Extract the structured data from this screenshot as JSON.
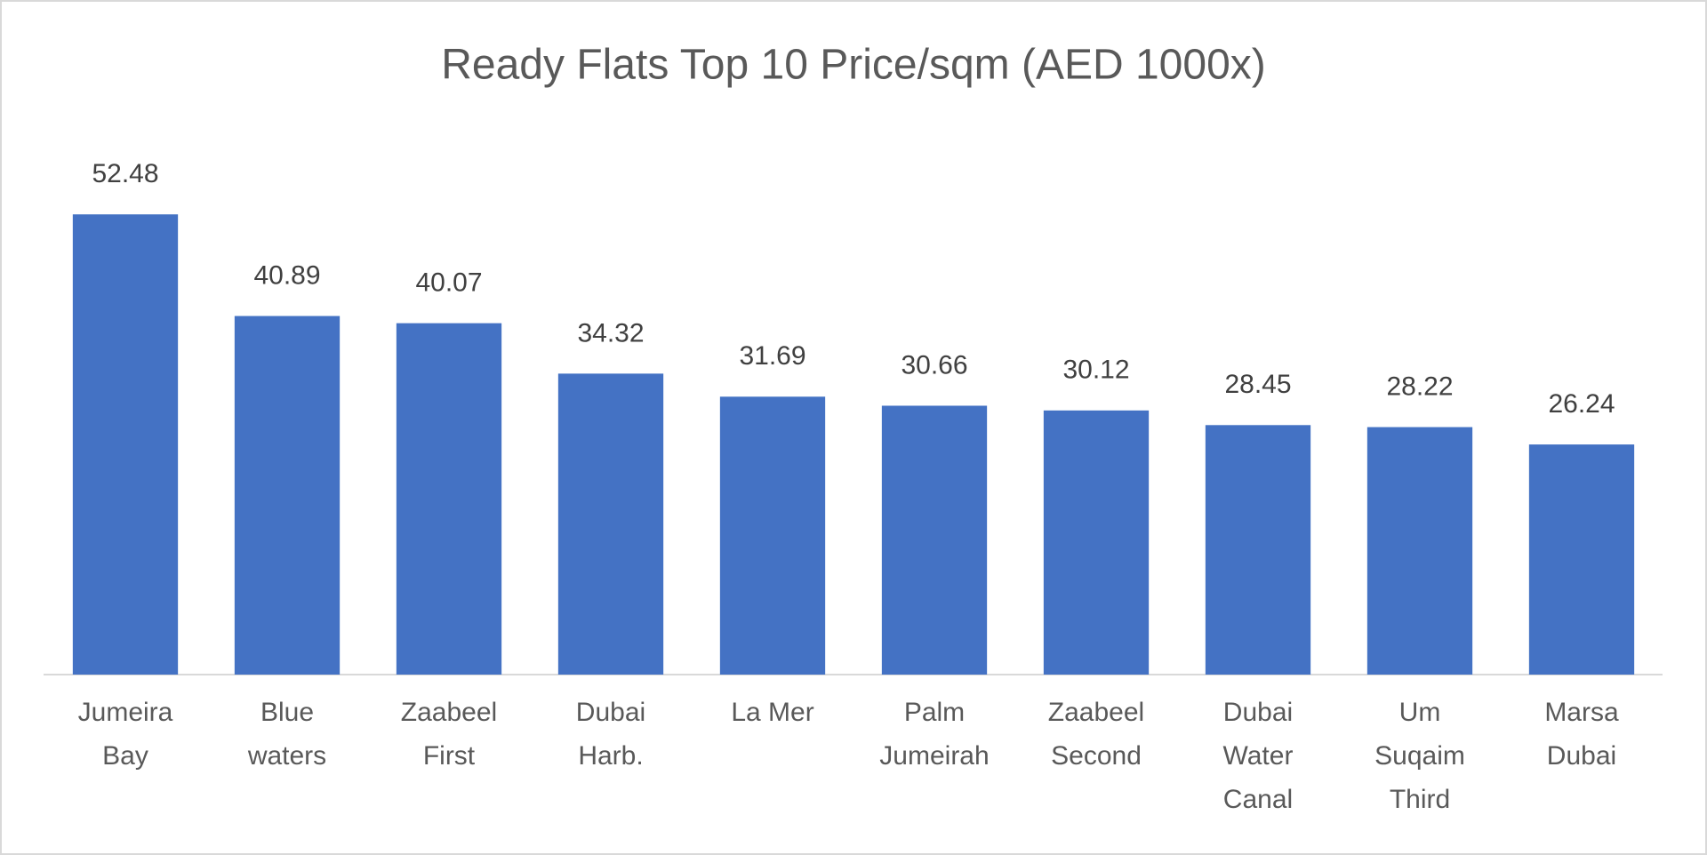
{
  "chart_data": {
    "type": "bar",
    "title": "Ready Flats Top 10 Price/sqm (AED 1000x)",
    "categories": [
      "Jumeira Bay",
      "Blue waters",
      "Zaabeel First",
      "Dubai Harb.",
      "La Mer",
      "Palm Jumeirah",
      "Zaabeel Second",
      "Dubai Water Canal",
      "Um Suqaim Third",
      "Marsa Dubai"
    ],
    "values": [
      52.48,
      40.89,
      40.07,
      34.32,
      31.69,
      30.66,
      30.12,
      28.45,
      28.22,
      26.24
    ],
    "color": "#4472c4",
    "ylim": [
      0,
      60
    ],
    "grid": false
  }
}
